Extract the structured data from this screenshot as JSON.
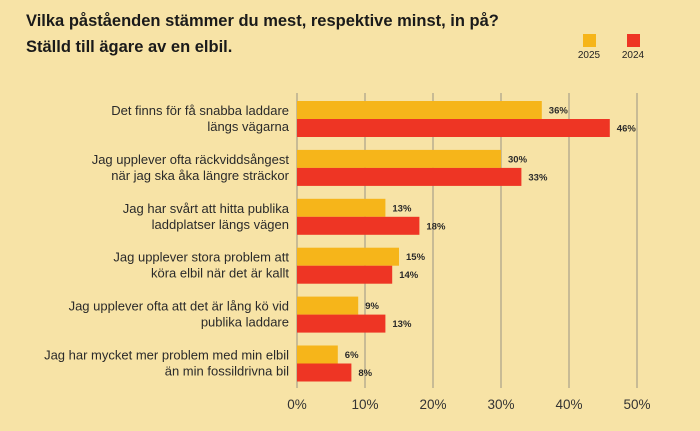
{
  "title": "Vilka påståenden stämmer du mest, respektive minst, in på?",
  "subtitle": "Ställd till ägare av en elbil.",
  "colors": {
    "2025": "#f6b51a",
    "2024": "#ee3524",
    "grid": "#9a9384",
    "background": "#f7e3a6"
  },
  "chart_data": {
    "type": "bar",
    "orientation": "horizontal",
    "title": "Vilka påståenden stämmer du mest, respektive minst, in på?",
    "subtitle": "Ställd till ägare av en elbil.",
    "categories": [
      [
        "Det finns för få snabba laddare",
        "längs vägarna"
      ],
      [
        "Jag upplever ofta räckviddsångest",
        "när jag ska åka längre sträckor"
      ],
      [
        "Jag har svårt att hitta publika",
        "laddplatser längs vägen"
      ],
      [
        "Jag upplever stora problem att",
        "köra elbil när det är kallt"
      ],
      [
        "Jag upplever ofta att det är lång kö vid",
        "publika laddare"
      ],
      [
        "Jag har mycket mer problem med min elbil",
        "än min fossildrivna bil"
      ]
    ],
    "series": [
      {
        "name": "2025",
        "values": [
          36,
          30,
          13,
          15,
          9,
          6
        ],
        "labels": [
          "36%",
          "30%",
          "13%",
          "15%",
          "9%",
          "6%"
        ]
      },
      {
        "name": "2024",
        "values": [
          46,
          33,
          18,
          14,
          13,
          8
        ],
        "labels": [
          "46%",
          "33%",
          "18%",
          "14%",
          "13%",
          "8%"
        ]
      }
    ],
    "xlim": [
      0,
      50
    ],
    "xticks": [
      0,
      10,
      20,
      30,
      40,
      50
    ],
    "xtick_labels": [
      "0%",
      "10%",
      "20%",
      "30%",
      "40%",
      "50%"
    ],
    "grid": true,
    "legend": "top-right"
  }
}
